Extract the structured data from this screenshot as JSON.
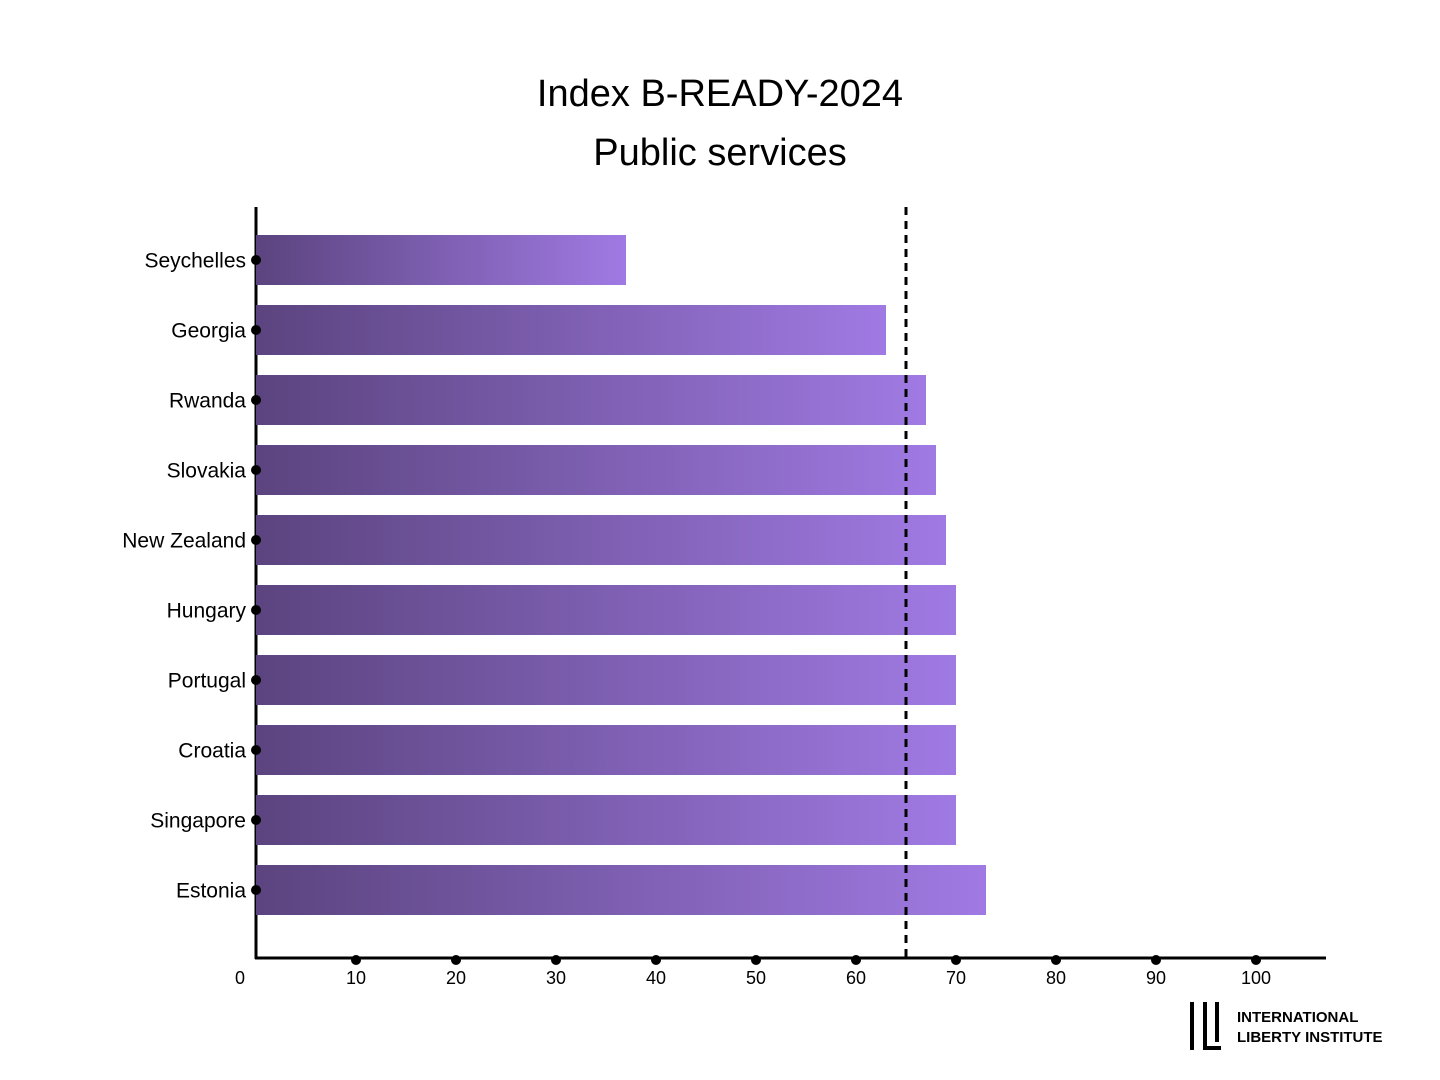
{
  "chart_data": {
    "type": "bar",
    "orientation": "horizontal",
    "title": "Index B-READY-2024",
    "subtitle": "Public services",
    "categories": [
      "Seychelles",
      "Georgia",
      "Rwanda",
      "Slovakia",
      "New Zealand",
      "Hungary",
      "Portugal",
      "Croatia",
      "Singapore",
      "Estonia"
    ],
    "values": [
      37,
      63,
      67,
      68,
      69,
      70,
      70,
      70,
      70,
      73
    ],
    "gradient": [
      "#5b447f",
      "#a07ae3"
    ],
    "xlim": [
      0,
      107
    ],
    "xticks": [
      0,
      10,
      20,
      30,
      40,
      50,
      60,
      70,
      80,
      90,
      100
    ],
    "reference_line": 65
  },
  "logo": {
    "lines": [
      "INTERNATIONAL",
      "LIBERTY INSTITUTE"
    ]
  }
}
